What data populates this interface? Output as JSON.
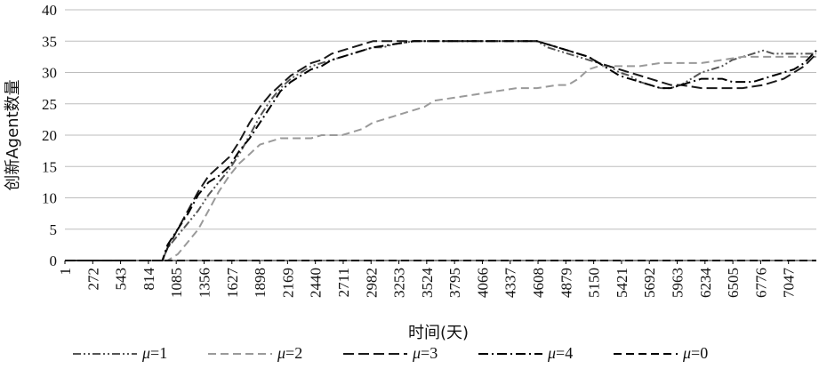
{
  "chart_data": {
    "type": "line",
    "title": "",
    "xlabel": "时间(天)",
    "ylabel": "创新Agent数量",
    "ylim": [
      0,
      40
    ],
    "yticks": [
      0,
      5,
      10,
      15,
      20,
      25,
      30,
      35,
      40
    ],
    "xlim": [
      1,
      7318
    ],
    "xticks": [
      1,
      272,
      543,
      814,
      1085,
      1356,
      1627,
      1898,
      2169,
      2440,
      2711,
      2982,
      3253,
      3524,
      3795,
      4066,
      4337,
      4608,
      4879,
      5150,
      5421,
      5692,
      5963,
      6234,
      6505,
      6776,
      7047
    ],
    "grid": "horizontal",
    "legend_position": "bottom",
    "series": [
      {
        "name": "μ=1",
        "legend_prefix": "μ",
        "legend_suffix": "=1",
        "color": "#555555",
        "dash": "dashdotdot",
        "x": [
          1,
          950,
          1000,
          1100,
          1200,
          1300,
          1400,
          1500,
          1600,
          1700,
          1800,
          1900,
          2000,
          2100,
          2200,
          2300,
          2400,
          2500,
          2600,
          2700,
          2800,
          2900,
          3000,
          3100,
          3200,
          3400,
          3600,
          3800,
          4000,
          4200,
          4400,
          4600,
          4700,
          4800,
          4900,
          5000,
          5100,
          5200,
          5300,
          5400,
          5500,
          5600,
          5700,
          5800,
          5900,
          6000,
          6100,
          6200,
          6300,
          6400,
          6500,
          6600,
          6700,
          6800,
          6900,
          7000,
          7100,
          7200,
          7318
        ],
        "y": [
          0,
          0,
          2,
          4,
          6,
          8,
          10.5,
          12.5,
          14.5,
          17,
          20,
          23,
          25.5,
          27.5,
          29,
          30,
          31,
          31.5,
          32,
          32.5,
          33,
          33.5,
          34,
          34,
          34.5,
          35,
          35,
          35,
          35,
          35,
          35,
          35,
          34,
          33.5,
          33,
          32.5,
          32,
          31.5,
          31,
          30,
          29.5,
          28.5,
          28,
          27.5,
          27.5,
          28,
          29,
          30,
          30.5,
          31,
          32,
          32.5,
          33,
          33.5,
          33,
          33,
          33,
          33,
          33
        ]
      },
      {
        "name": "μ=2",
        "legend_prefix": "μ",
        "legend_suffix": "=2",
        "color": "#9a9a9a",
        "dash": "dash",
        "x": [
          1,
          1000,
          1100,
          1200,
          1300,
          1400,
          1500,
          1600,
          1700,
          1800,
          1900,
          2000,
          2100,
          2200,
          2300,
          2400,
          2500,
          2600,
          2700,
          2800,
          2900,
          3000,
          3100,
          3200,
          3300,
          3400,
          3500,
          3600,
          3800,
          4000,
          4200,
          4400,
          4600,
          4800,
          4900,
          5000,
          5100,
          5200,
          5300,
          5400,
          5600,
          5800,
          6000,
          6200,
          6400,
          6600,
          6800,
          7000,
          7318
        ],
        "y": [
          0,
          0,
          1,
          3,
          5,
          8,
          11,
          13.5,
          15.5,
          17,
          18.5,
          19,
          19.5,
          19.5,
          19.5,
          19.5,
          20,
          20,
          20,
          20.5,
          21,
          22,
          22.5,
          23,
          23.5,
          24,
          24.5,
          25.5,
          26,
          26.5,
          27,
          27.5,
          27.5,
          28,
          28,
          29,
          30.5,
          31,
          31,
          31,
          31,
          31.5,
          31.5,
          31.5,
          32,
          32.5,
          32.5,
          32.5,
          32.5
        ]
      },
      {
        "name": "μ=3",
        "legend_prefix": "μ",
        "legend_suffix": "=3",
        "color": "#1a1a1a",
        "dash": "longdash",
        "x": [
          1,
          950,
          1000,
          1100,
          1200,
          1300,
          1400,
          1500,
          1600,
          1700,
          1800,
          1900,
          2000,
          2100,
          2200,
          2300,
          2400,
          2500,
          2600,
          2700,
          2800,
          2900,
          3000,
          3200,
          3400,
          3600,
          3800,
          4000,
          4200,
          4400,
          4600,
          4700,
          4800,
          4900,
          5000,
          5100,
          5200,
          5300,
          5400,
          5500,
          5600,
          5700,
          5800,
          5900,
          6000,
          6200,
          6400,
          6600,
          6800,
          7000,
          7200,
          7318
        ],
        "y": [
          0,
          0,
          2,
          5,
          8,
          11,
          13.5,
          15,
          16.5,
          19,
          22,
          24.5,
          26.5,
          28,
          29.5,
          30.5,
          31.5,
          32,
          33,
          33.5,
          34,
          34.5,
          35,
          35,
          35,
          35,
          35,
          35,
          35,
          35,
          35,
          34.5,
          34,
          33.5,
          33,
          32.5,
          31.5,
          31,
          30.5,
          30,
          29.5,
          29,
          28.5,
          28,
          28,
          27.5,
          27.5,
          27.5,
          28,
          29,
          31,
          33
        ]
      },
      {
        "name": "μ=4",
        "legend_prefix": "μ",
        "legend_suffix": "=4",
        "color": "#000000",
        "dash": "dashdot",
        "x": [
          1,
          950,
          1000,
          1100,
          1200,
          1300,
          1400,
          1500,
          1600,
          1700,
          1800,
          1900,
          2000,
          2100,
          2200,
          2300,
          2400,
          2500,
          2600,
          2700,
          2800,
          2900,
          3000,
          3200,
          3400,
          3600,
          3800,
          4000,
          4200,
          4400,
          4600,
          4700,
          4800,
          4900,
          5000,
          5100,
          5200,
          5300,
          5400,
          5500,
          5600,
          5700,
          5800,
          5900,
          6000,
          6100,
          6200,
          6300,
          6400,
          6500,
          6600,
          6700,
          6800,
          6900,
          7000,
          7100,
          7200,
          7318
        ],
        "y": [
          0,
          0,
          2.5,
          5,
          7.5,
          10.5,
          12.5,
          13.5,
          15,
          17.5,
          19.5,
          22,
          24.5,
          27,
          28.5,
          29.5,
          30.5,
          31,
          32,
          32.5,
          33,
          33.5,
          34,
          34.5,
          35,
          35,
          35,
          35,
          35,
          35,
          35,
          34.5,
          34,
          33.5,
          33,
          32.5,
          31.5,
          30.5,
          29.5,
          29,
          28.5,
          28,
          27.5,
          27.5,
          28,
          28.5,
          29,
          29,
          29,
          28.5,
          28.5,
          28.5,
          29,
          29.5,
          30,
          30.5,
          31.5,
          33.5
        ]
      },
      {
        "name": "μ=0",
        "legend_prefix": "μ",
        "legend_suffix": "=0",
        "color": "#000000",
        "dash": "dash",
        "x": [
          1,
          7318
        ],
        "y": [
          0,
          0
        ]
      }
    ]
  }
}
